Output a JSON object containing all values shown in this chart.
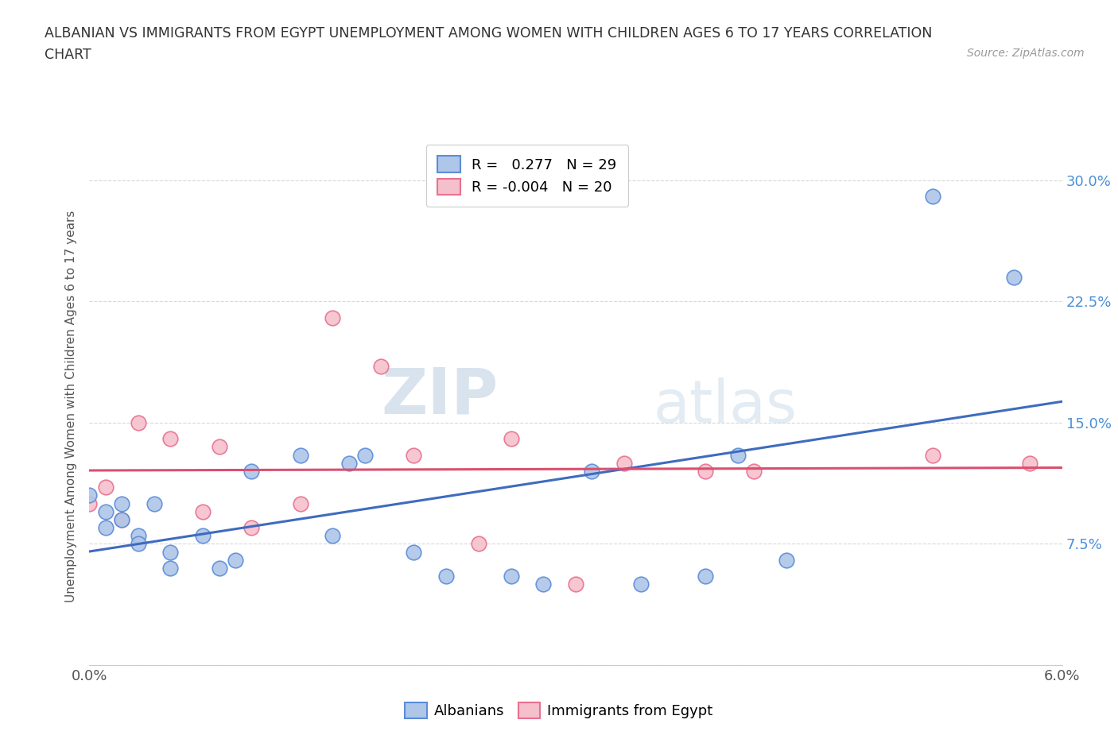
{
  "title_line1": "ALBANIAN VS IMMIGRANTS FROM EGYPT UNEMPLOYMENT AMONG WOMEN WITH CHILDREN AGES 6 TO 17 YEARS CORRELATION",
  "title_line2": "CHART",
  "source": "Source: ZipAtlas.com",
  "ylabel": "Unemployment Among Women with Children Ages 6 to 17 years",
  "xlim": [
    0.0,
    0.06
  ],
  "ylim": [
    0.0,
    0.32
  ],
  "yticks": [
    0.0,
    0.075,
    0.15,
    0.225,
    0.3
  ],
  "ytick_labels_right": [
    "",
    "7.5%",
    "15.0%",
    "22.5%",
    "30.0%"
  ],
  "xtick_vals": [
    0.0,
    0.006,
    0.012,
    0.018,
    0.024,
    0.03,
    0.036,
    0.042,
    0.048,
    0.054,
    0.06
  ],
  "xtick_labels": [
    "0.0%",
    "",
    "",
    "",
    "",
    "",
    "",
    "",
    "",
    "",
    "6.0%"
  ],
  "watermark_zip": "ZIP",
  "watermark_atlas": "atlas",
  "albanian_R": 0.277,
  "albanian_N": 29,
  "egypt_R": -0.004,
  "egypt_N": 20,
  "albanian_color": "#aec6e8",
  "albanian_edge_color": "#5b8dd9",
  "egypt_color": "#f5c0cc",
  "egypt_edge_color": "#e87090",
  "albanian_line_color": "#3f6bbf",
  "egypt_line_color": "#d94f70",
  "albanian_x": [
    0.0,
    0.001,
    0.001,
    0.002,
    0.002,
    0.003,
    0.003,
    0.004,
    0.005,
    0.005,
    0.007,
    0.008,
    0.009,
    0.01,
    0.013,
    0.015,
    0.016,
    0.017,
    0.02,
    0.022,
    0.026,
    0.028,
    0.031,
    0.034,
    0.038,
    0.04,
    0.043,
    0.052,
    0.057
  ],
  "albanian_y": [
    0.105,
    0.085,
    0.095,
    0.09,
    0.1,
    0.08,
    0.075,
    0.1,
    0.06,
    0.07,
    0.08,
    0.06,
    0.065,
    0.12,
    0.13,
    0.08,
    0.125,
    0.13,
    0.07,
    0.055,
    0.055,
    0.05,
    0.12,
    0.05,
    0.055,
    0.13,
    0.065,
    0.29,
    0.24
  ],
  "egypt_x": [
    0.0,
    0.001,
    0.002,
    0.003,
    0.005,
    0.007,
    0.008,
    0.01,
    0.013,
    0.015,
    0.018,
    0.02,
    0.024,
    0.026,
    0.03,
    0.033,
    0.038,
    0.041,
    0.052,
    0.058
  ],
  "egypt_y": [
    0.1,
    0.11,
    0.09,
    0.15,
    0.14,
    0.095,
    0.135,
    0.085,
    0.1,
    0.215,
    0.185,
    0.13,
    0.075,
    0.14,
    0.05,
    0.125,
    0.12,
    0.12,
    0.13,
    0.125
  ],
  "background_color": "#ffffff",
  "grid_color": "#d8d8d8",
  "legend_box_color": "#f0f0f0"
}
